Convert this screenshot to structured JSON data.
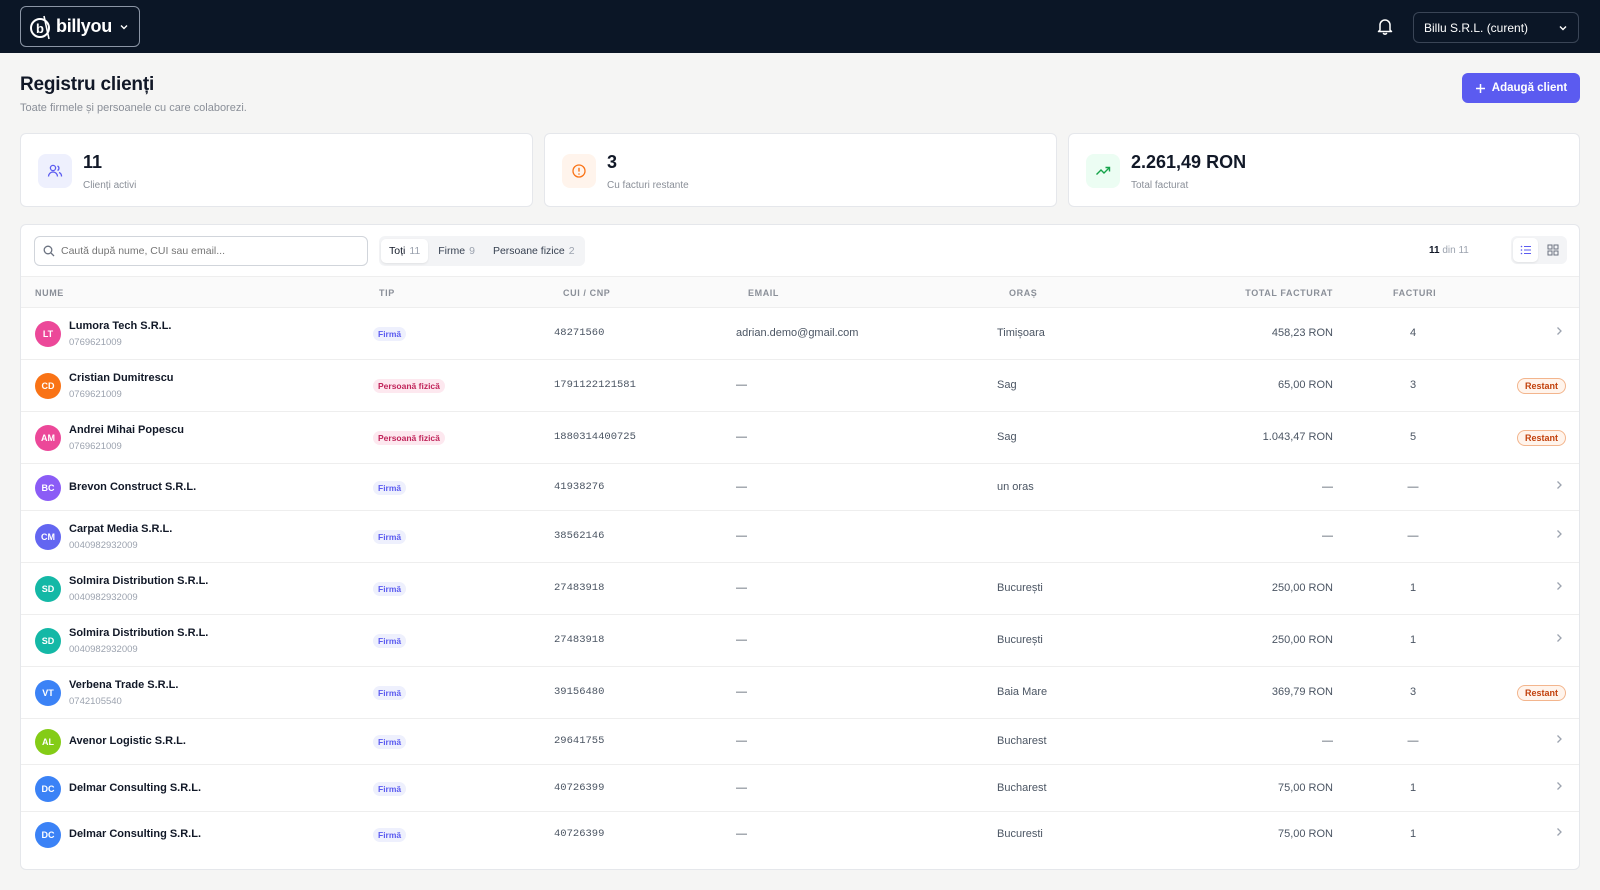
{
  "topbar": {
    "brand": "billyou",
    "company_selector": "Billu S.R.L. (curent)"
  },
  "header": {
    "title": "Registru clienți",
    "subtitle": "Toate firmele și persoanele cu care colaborezi.",
    "add_button": "Adaugă client"
  },
  "stats": [
    {
      "value": "11",
      "label": "Clienți activi",
      "icon": "users-icon"
    },
    {
      "value": "3",
      "label": "Cu facturi restante",
      "icon": "alert-circle-icon"
    },
    {
      "value": "2.261,49 RON",
      "label": "Total facturat",
      "icon": "trending-up-icon"
    }
  ],
  "search": {
    "placeholder": "Caută după nume, CUI sau email..."
  },
  "filters": [
    {
      "label": "Toți",
      "count": "11",
      "active": true
    },
    {
      "label": "Firme",
      "count": "9",
      "active": false
    },
    {
      "label": "Persoane fizice",
      "count": "2",
      "active": false
    }
  ],
  "result_count": {
    "shown": "11",
    "suffix": "din 11"
  },
  "columns": [
    "Nume",
    "Tip",
    "CUI / CNP",
    "Email",
    "Oraș",
    "Total facturat",
    "Facturi"
  ],
  "rows": [
    {
      "initials": "LT",
      "color": "#ec4899",
      "name": "Lumora Tech S.R.L.",
      "phone": "0769621009",
      "type": "Firmă",
      "kind": "firma",
      "cui": "48271560",
      "email": "adrian.demo@gmail.com",
      "city": "Timișoara",
      "total": "458,23 RON",
      "invoices": "4",
      "restant": ""
    },
    {
      "initials": "CD",
      "color": "#f97316",
      "name": "Cristian Dumitrescu",
      "phone": "0769621009",
      "type": "Persoană fizică",
      "kind": "pf",
      "cui": "1791122121581",
      "email": "—",
      "city": "Sag",
      "total": "65,00 RON",
      "invoices": "3",
      "restant": "Restant"
    },
    {
      "initials": "AM",
      "color": "#ec4899",
      "name": "Andrei Mihai Popescu",
      "phone": "0769621009",
      "type": "Persoană fizică",
      "kind": "pf",
      "cui": "1880314400725",
      "email": "—",
      "city": "Sag",
      "total": "1.043,47 RON",
      "invoices": "5",
      "restant": "Restant"
    },
    {
      "initials": "BC",
      "color": "#8b5cf6",
      "name": "Brevon Construct S.R.L.",
      "phone": "",
      "type": "Firmă",
      "kind": "firma",
      "cui": "41938276",
      "email": "—",
      "city": "un oras",
      "total": "—",
      "invoices": "—",
      "restant": ""
    },
    {
      "initials": "CM",
      "color": "#6366f1",
      "name": "Carpat Media S.R.L.",
      "phone": "0040982932009",
      "type": "Firmă",
      "kind": "firma",
      "cui": "38562146",
      "email": "—",
      "city": "",
      "total": "—",
      "invoices": "—",
      "restant": ""
    },
    {
      "initials": "SD",
      "color": "#14b8a6",
      "name": "Solmira Distribution S.R.L.",
      "phone": "0040982932009",
      "type": "Firmă",
      "kind": "firma",
      "cui": "27483918",
      "email": "—",
      "city": "București",
      "total": "250,00 RON",
      "invoices": "1",
      "restant": ""
    },
    {
      "initials": "SD",
      "color": "#14b8a6",
      "name": "Solmira Distribution S.R.L.",
      "phone": "0040982932009",
      "type": "Firmă",
      "kind": "firma",
      "cui": "27483918",
      "email": "—",
      "city": "București",
      "total": "250,00 RON",
      "invoices": "1",
      "restant": ""
    },
    {
      "initials": "VT",
      "color": "#3b82f6",
      "name": "Verbena Trade S.R.L.",
      "phone": "0742105540",
      "type": "Firmă",
      "kind": "firma",
      "cui": "39156480",
      "email": "—",
      "city": "Baia Mare",
      "total": "369,79 RON",
      "invoices": "3",
      "restant": "Restant"
    },
    {
      "initials": "AL",
      "color": "#84cc16",
      "name": "Avenor Logistic S.R.L.",
      "phone": "",
      "type": "Firmă",
      "kind": "firma",
      "cui": "29641755",
      "email": "—",
      "city": "Bucharest",
      "total": "—",
      "invoices": "—",
      "restant": ""
    },
    {
      "initials": "DC",
      "color": "#3b82f6",
      "name": "Delmar Consulting S.R.L.",
      "phone": "",
      "type": "Firmă",
      "kind": "firma",
      "cui": "40726399",
      "email": "—",
      "city": "Bucharest",
      "total": "75,00 RON",
      "invoices": "1",
      "restant": ""
    },
    {
      "initials": "DC",
      "color": "#3b82f6",
      "name": "Delmar Consulting S.R.L.",
      "phone": "",
      "type": "Firmă",
      "kind": "firma",
      "cui": "40726399",
      "email": "—",
      "city": "Bucuresti",
      "total": "75,00 RON",
      "invoices": "1",
      "restant": ""
    }
  ]
}
